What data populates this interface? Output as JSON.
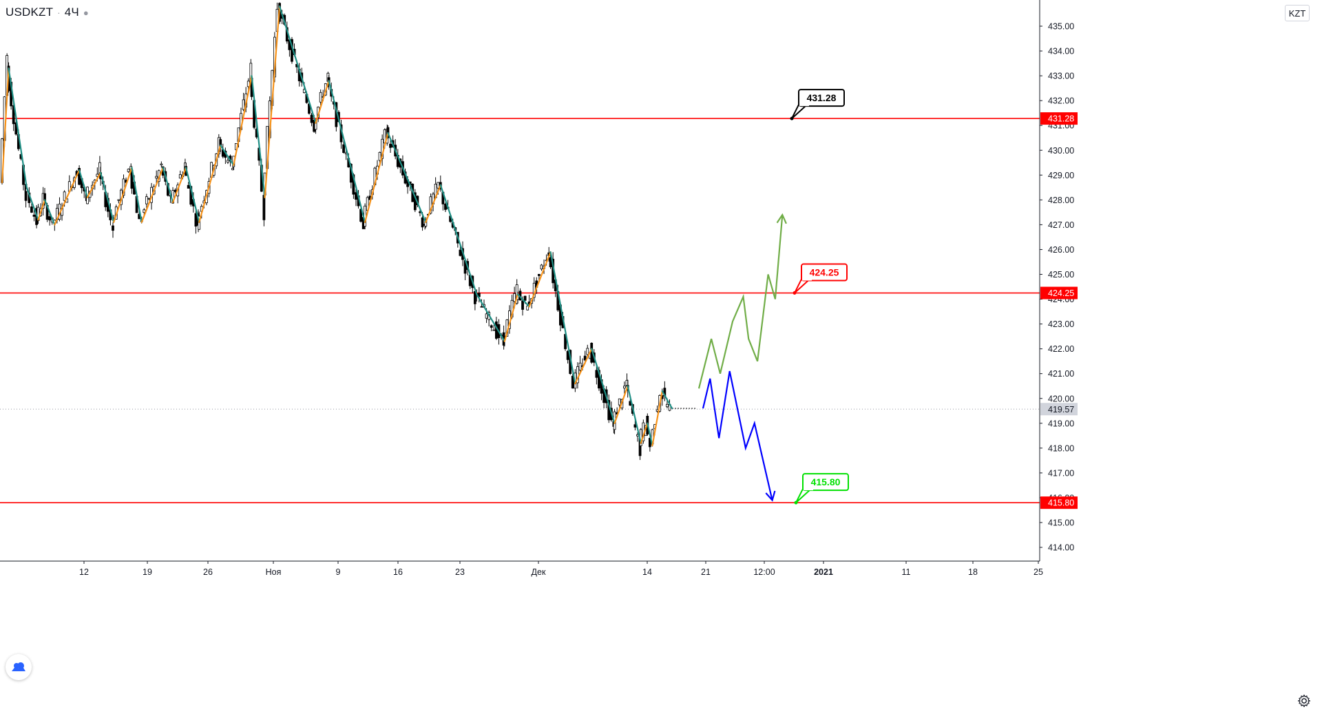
{
  "header": {
    "symbol": "USDKZT",
    "interval": "4Ч"
  },
  "currency_badge": "KZT",
  "chart_data": {
    "type": "candlestick",
    "symbol": "USDKZT",
    "interval": "4Ч",
    "currency": "KZT",
    "y_axis": {
      "ylim": [
        413.4,
        436.2
      ],
      "ticks": [
        "414.00",
        "415.00",
        "416.00",
        "417.00",
        "418.00",
        "419.00",
        "420.00",
        "421.00",
        "422.00",
        "423.00",
        "424.00",
        "425.00",
        "426.00",
        "427.00",
        "428.00",
        "429.00",
        "430.00",
        "431.00",
        "432.00",
        "433.00",
        "434.00",
        "435.00"
      ]
    },
    "x_axis": {
      "tick_labels": [
        "12",
        "19",
        "26",
        "Ноя",
        "9",
        "16",
        "23",
        "Дек",
        "14",
        "21",
        "12:00",
        "2021",
        "11",
        "18",
        "25"
      ]
    },
    "current_price": "419.57",
    "horizontal_levels": [
      {
        "value": "431.28",
        "color": "#ff0000",
        "label_color": "#000000"
      },
      {
        "value": "424.25",
        "color": "#ff0000",
        "label_color": "#ff0000"
      },
      {
        "value": "415.80",
        "color": "#ff0000",
        "label_color": "#00e000"
      }
    ],
    "zigzag": [
      {
        "t": 0,
        "p": 428.7
      },
      {
        "t": 4,
        "p": 433.3
      },
      {
        "t": 15,
        "p": 428.5
      },
      {
        "t": 22,
        "p": 427.2
      },
      {
        "t": 26,
        "p": 428.0
      },
      {
        "t": 32,
        "p": 427.0
      },
      {
        "t": 47,
        "p": 429.2
      },
      {
        "t": 52,
        "p": 428.1
      },
      {
        "t": 60,
        "p": 429.1
      },
      {
        "t": 68,
        "p": 427.1
      },
      {
        "t": 79,
        "p": 429.3
      },
      {
        "t": 85,
        "p": 427.1
      },
      {
        "t": 98,
        "p": 429.3
      },
      {
        "t": 104,
        "p": 427.9
      },
      {
        "t": 112,
        "p": 429.3
      },
      {
        "t": 120,
        "p": 427.1
      },
      {
        "t": 133,
        "p": 430.2
      },
      {
        "t": 141,
        "p": 429.4
      },
      {
        "t": 152,
        "p": 433.0
      },
      {
        "t": 160,
        "p": 428.1
      },
      {
        "t": 169,
        "p": 435.8
      },
      {
        "t": 191,
        "p": 431.1
      },
      {
        "t": 199,
        "p": 432.8
      },
      {
        "t": 221,
        "p": 427.1
      },
      {
        "t": 235,
        "p": 430.7
      },
      {
        "t": 258,
        "p": 427.1
      },
      {
        "t": 267,
        "p": 428.6
      },
      {
        "t": 289,
        "p": 424.2
      },
      {
        "t": 306,
        "p": 422.3
      },
      {
        "t": 314,
        "p": 424.2
      },
      {
        "t": 321,
        "p": 423.7
      },
      {
        "t": 334,
        "p": 425.9
      },
      {
        "t": 349,
        "p": 420.6
      },
      {
        "t": 359,
        "p": 422.0
      },
      {
        "t": 373,
        "p": 419.0
      },
      {
        "t": 381,
        "p": 420.5
      },
      {
        "t": 389,
        "p": 418.2
      },
      {
        "t": 393,
        "p": 419.0
      },
      {
        "t": 396,
        "p": 418.1
      },
      {
        "t": 402,
        "p": 420.3
      },
      {
        "t": 408,
        "p": 419.6
      }
    ],
    "projections": [
      {
        "direction": "up",
        "color": "#70ad47",
        "path": [
          [
            0,
            420.4
          ],
          [
            7,
            422.4
          ],
          [
            12,
            421.0
          ],
          [
            19,
            423.1
          ],
          [
            25,
            424.1
          ],
          [
            28,
            422.4
          ],
          [
            33,
            421.5
          ],
          [
            39,
            425.0
          ],
          [
            43,
            424.0
          ],
          [
            47,
            427.4
          ]
        ]
      },
      {
        "direction": "down",
        "color": "#0000ff",
        "path": [
          [
            0,
            419.6
          ],
          [
            4,
            420.8
          ],
          [
            9,
            418.4
          ],
          [
            15,
            421.1
          ],
          [
            24,
            418.0
          ],
          [
            29,
            419.0
          ],
          [
            39,
            415.9
          ]
        ]
      }
    ]
  }
}
